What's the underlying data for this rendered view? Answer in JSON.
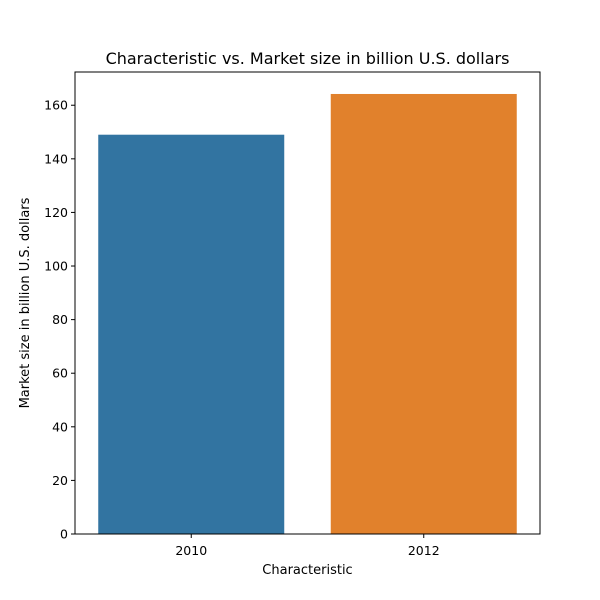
{
  "chart_data": {
    "type": "bar",
    "title": "Characteristic vs. Market size in billion U.S. dollars",
    "xlabel": "Characteristic",
    "ylabel": "Market size in billion U.S. dollars",
    "categories": [
      "2010",
      "2012"
    ],
    "values": [
      149,
      164.2
    ],
    "colors": [
      "#3274a1",
      "#e1812c"
    ],
    "ylim": [
      0,
      172.4
    ],
    "yticks": [
      0,
      20,
      40,
      60,
      80,
      100,
      120,
      140,
      160
    ],
    "grid": false,
    "legend": "none"
  }
}
